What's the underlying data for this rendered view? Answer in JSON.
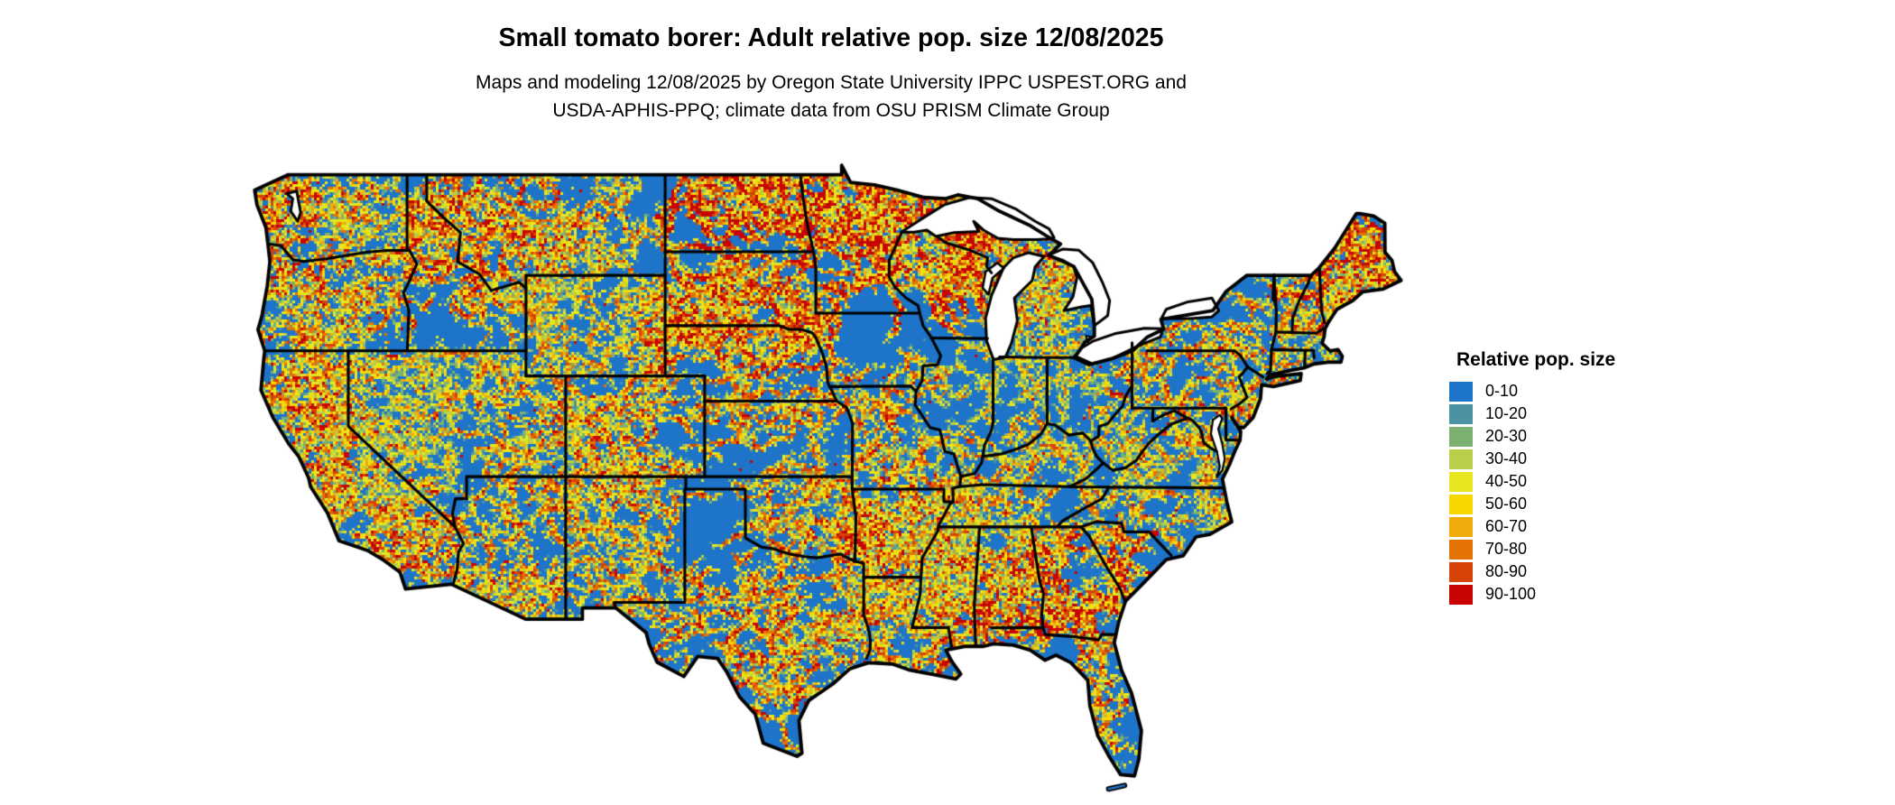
{
  "figure": {
    "title": "Small tomato borer: Adult relative pop. size 12/08/2025",
    "subtitle_line1": "Maps and modeling 12/08/2025 by Oregon State University IPPC USPEST.ORG and",
    "subtitle_line2": "USDA-APHIS-PPQ; climate data from OSU PRISM Climate Group"
  },
  "legend": {
    "title": "Relative pop. size",
    "bins": [
      {
        "label": "0-10",
        "color": "#1E74C8"
      },
      {
        "label": "10-20",
        "color": "#4B92A3"
      },
      {
        "label": "20-30",
        "color": "#7CB172"
      },
      {
        "label": "30-40",
        "color": "#B7CF4B"
      },
      {
        "label": "40-50",
        "color": "#E6E621"
      },
      {
        "label": "50-60",
        "color": "#F6D800"
      },
      {
        "label": "60-70",
        "color": "#EFAC0A"
      },
      {
        "label": "70-80",
        "color": "#E37404"
      },
      {
        "label": "80-90",
        "color": "#D54305"
      },
      {
        "label": "90-100",
        "color": "#C70403"
      }
    ]
  },
  "map": {
    "base_fill": "#1E74C8",
    "border_color": "#000000",
    "water_color": "#FFFFFF",
    "background": "#FFFFFF"
  }
}
